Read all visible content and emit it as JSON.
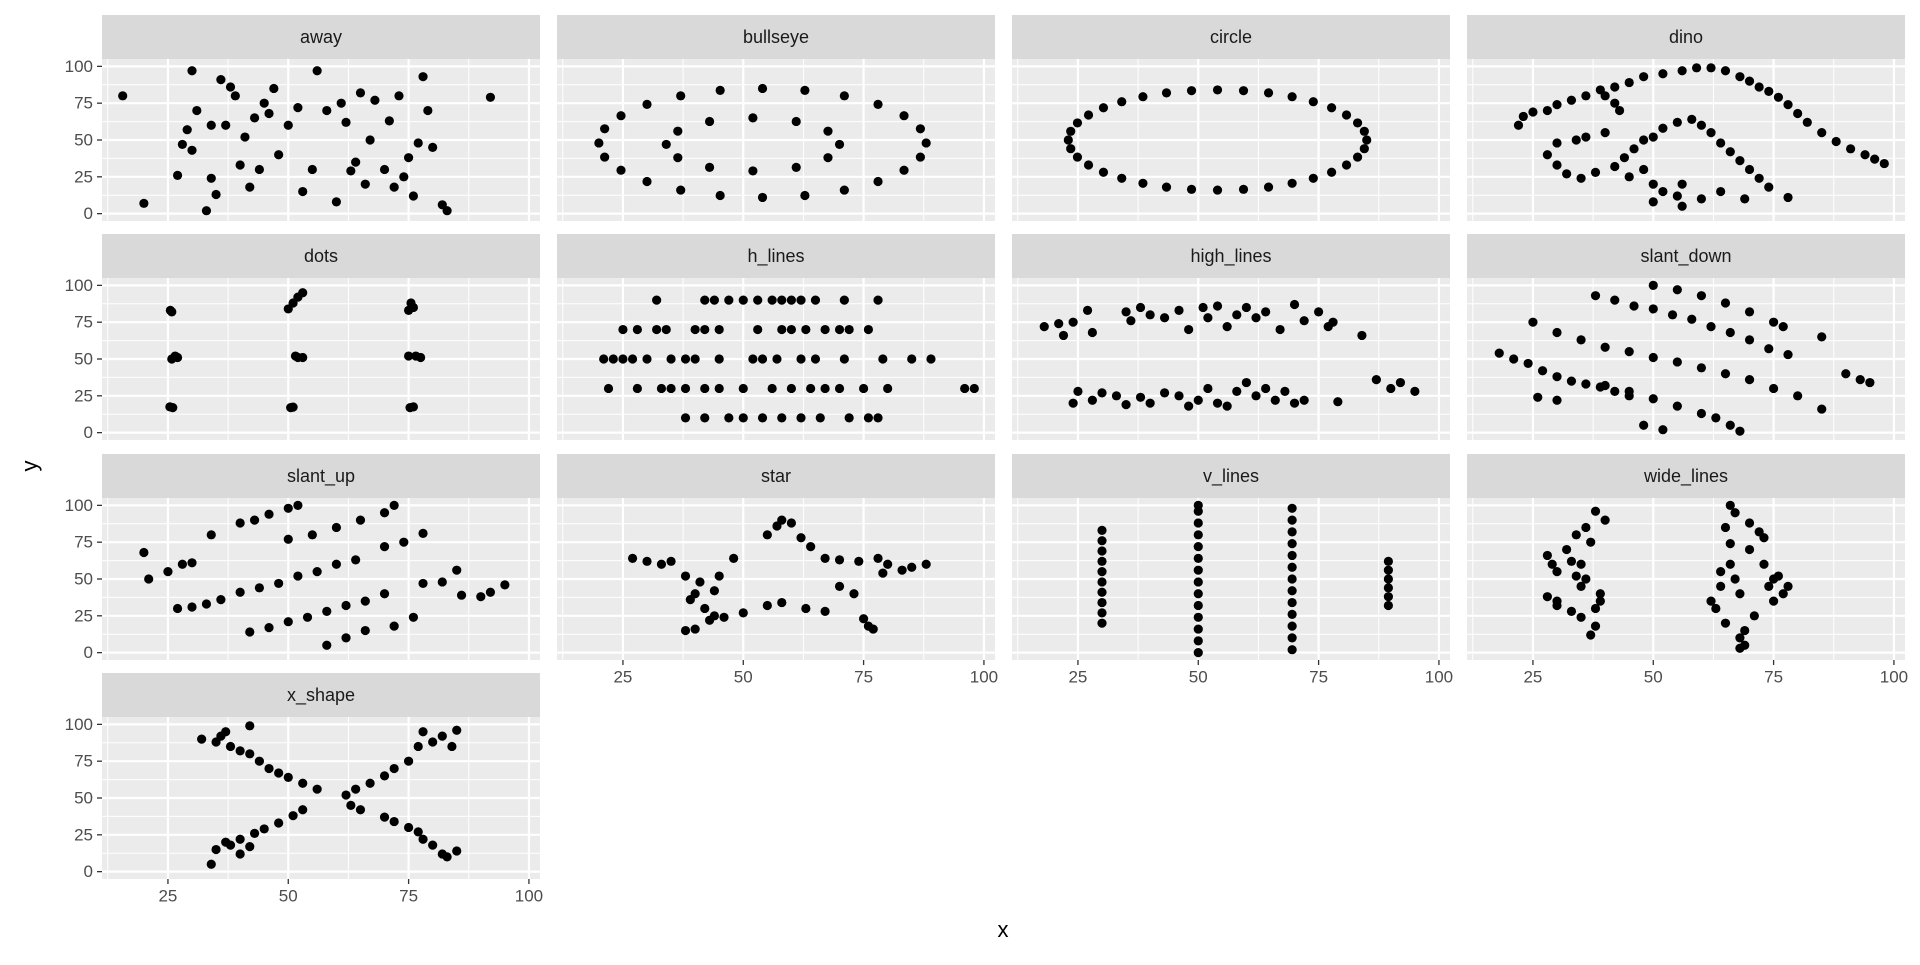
{
  "chart_data": {
    "type": "scatter",
    "xlabel": "x",
    "ylabel": "y",
    "xlim": [
      11.3,
      102.3
    ],
    "ylim": [
      -5,
      105
    ],
    "xticks": [
      25,
      50,
      75,
      100
    ],
    "yticks": [
      0,
      25,
      50,
      75,
      100
    ],
    "grid": true,
    "color": "#000000",
    "panel_color": "#ebebeb",
    "strip_color": "#d9d9d9",
    "panels": [
      {
        "name": "away",
        "x": [
          15.6,
          20,
          30,
          31,
          29,
          28,
          30,
          27,
          33,
          34,
          35,
          36,
          37,
          38,
          39,
          40,
          41,
          42,
          43,
          44,
          45,
          47,
          48,
          50,
          52,
          53,
          55,
          56,
          58,
          60,
          61,
          62,
          63,
          65,
          66,
          67,
          68,
          70,
          71,
          72,
          73,
          75,
          76,
          77,
          78,
          79,
          80,
          82,
          83,
          92,
          34,
          46,
          64,
          74
        ],
        "y": [
          80,
          7,
          97,
          70,
          57,
          47,
          43,
          26,
          2,
          24,
          13,
          91,
          60,
          86,
          80,
          33,
          52,
          18,
          65,
          30,
          75,
          85,
          40,
          60,
          72,
          15,
          30,
          97,
          70,
          8,
          75,
          62,
          29,
          82,
          20,
          50,
          77,
          30,
          63,
          18,
          80,
          38,
          12,
          48,
          93,
          70,
          45,
          6,
          2,
          79,
          60,
          68,
          35,
          25
        ]
      },
      {
        "name": "bullseye",
        "x": [
          88,
          83.4,
          71,
          54,
          37,
          24.6,
          20,
          24.6,
          37,
          54,
          71,
          83.4,
          86.8,
          78,
          62.8,
          45.2,
          30,
          21.2,
          21.2,
          30,
          45.2,
          62.8,
          78,
          86.8,
          70,
          67.6,
          61,
          52,
          43,
          36.4,
          34,
          36.4,
          43,
          52,
          61,
          67.6
        ],
        "y": [
          48,
          66.5,
          80,
          85,
          80,
          66.5,
          48,
          29.5,
          16,
          11,
          16,
          29.5,
          57.6,
          74.2,
          83.7,
          83.7,
          74.2,
          57.6,
          38.4,
          21.8,
          12.3,
          12.3,
          21.8,
          38.4,
          47,
          56,
          62.6,
          65,
          62.6,
          56,
          47,
          38,
          31.4,
          29,
          31.4,
          38
        ]
      },
      {
        "name": "circle",
        "x": [
          85,
          83.1,
          77.7,
          69.5,
          59.4,
          48.6,
          38.5,
          30.3,
          24.9,
          23,
          24.9,
          30.3,
          38.5,
          48.6,
          59.4,
          69.5,
          77.7,
          83.1,
          84.5,
          80.8,
          73.9,
          64.6,
          54,
          43.4,
          34.1,
          27.2,
          23.5,
          23.5,
          27.2,
          34.1,
          43.4,
          54,
          64.6,
          73.9,
          80.8,
          84.5
        ],
        "y": [
          50,
          61.6,
          71.9,
          79.4,
          83.5,
          83.5,
          79.4,
          71.9,
          61.6,
          50,
          38.4,
          28.1,
          20.6,
          16.5,
          16.5,
          20.6,
          28.1,
          38.4,
          55.9,
          67,
          76,
          82,
          84,
          82,
          76,
          67,
          55.9,
          44.1,
          33,
          24,
          18,
          16,
          18,
          24,
          33,
          44.1
        ]
      },
      {
        "name": "dino",
        "x": [
          22,
          23,
          25,
          28,
          30,
          33,
          36,
          39,
          42,
          45,
          48,
          52,
          56,
          59,
          62,
          65,
          68,
          70,
          72,
          74,
          76,
          78,
          80,
          82,
          85,
          88,
          91,
          94,
          96,
          98,
          28,
          30,
          32,
          35,
          38,
          42,
          44,
          46,
          48,
          50,
          52,
          55,
          58,
          60,
          62,
          64,
          66,
          68,
          70,
          72,
          74,
          78,
          60,
          55,
          52,
          50,
          56,
          64,
          69,
          40,
          42,
          43,
          40,
          36,
          34,
          30,
          56,
          50,
          45,
          48
        ],
        "y": [
          60,
          66,
          69,
          70,
          74,
          77,
          80,
          84,
          86,
          89,
          93,
          95,
          97,
          99,
          99,
          97,
          93,
          90,
          86,
          83,
          79,
          74,
          68,
          62,
          55,
          49,
          44,
          40,
          37,
          34,
          40,
          33,
          27,
          24,
          28,
          32,
          38,
          44,
          50,
          52,
          58,
          62,
          64,
          60,
          55,
          48,
          42,
          36,
          30,
          24,
          18,
          11,
          10,
          12,
          15,
          20,
          20,
          15,
          10,
          80,
          75,
          70,
          55,
          52,
          50,
          48,
          5,
          8,
          25,
          30
        ]
      },
      {
        "name": "dots",
        "x": [
          25.5,
          25.8,
          26,
          25.4,
          26.5,
          27,
          25.8,
          50,
          51,
          52,
          53,
          50.5,
          51,
          52,
          53,
          51.5,
          75,
          75.5,
          76,
          75.3,
          76,
          76.5,
          77.5,
          75
        ],
        "y": [
          83,
          82,
          17,
          17.5,
          52,
          51,
          50,
          84,
          88,
          92,
          95,
          17,
          17.3,
          51,
          51,
          52,
          83,
          88,
          85,
          17,
          17.5,
          52,
          51,
          52
        ]
      },
      {
        "name": "h_lines",
        "x": [
          32,
          42,
          44,
          47,
          50,
          53,
          56,
          58,
          60,
          62,
          65,
          71,
          78,
          25,
          28,
          32,
          34,
          40,
          42,
          45,
          53,
          58,
          60,
          63,
          67,
          70,
          72,
          76,
          21,
          23,
          25,
          27,
          30,
          35,
          38,
          40,
          45,
          52,
          54,
          57,
          62,
          65,
          71,
          79,
          85,
          89,
          22,
          28,
          33,
          35,
          38,
          42,
          45,
          50,
          56,
          60,
          64,
          67,
          70,
          75,
          80,
          96,
          98,
          38,
          42,
          47,
          50,
          54,
          58,
          62,
          66,
          72,
          76,
          78
        ],
        "y": [
          90,
          90,
          90,
          90,
          90,
          90,
          90,
          90,
          90,
          90,
          90,
          90,
          90,
          70,
          70,
          70,
          70,
          70,
          70,
          70,
          70,
          70,
          70,
          70,
          70,
          70,
          70,
          70,
          50,
          50,
          50,
          50,
          50,
          50,
          50,
          50,
          50,
          50,
          50,
          50,
          50,
          50,
          50,
          50,
          50,
          50,
          30,
          30,
          30,
          30,
          30,
          30,
          30,
          30,
          30,
          30,
          30,
          30,
          30,
          30,
          30,
          30,
          30,
          10,
          10,
          10,
          10,
          10,
          10,
          10,
          10,
          10,
          10,
          10
        ]
      },
      {
        "name": "high_lines",
        "x": [
          18,
          21,
          22,
          24,
          27,
          28,
          35,
          36,
          38,
          40,
          43,
          46,
          48,
          51,
          52,
          54,
          56,
          58,
          60,
          62,
          64,
          67,
          70,
          72,
          75,
          77,
          78,
          84,
          25,
          24,
          28,
          30,
          33,
          35,
          38,
          40,
          43,
          46,
          48,
          50,
          52,
          54,
          56,
          58,
          60,
          62,
          64,
          66,
          68,
          70,
          72,
          79,
          87,
          92,
          95,
          90
        ],
        "y": [
          72,
          74,
          66,
          75,
          83,
          68,
          82,
          76,
          85,
          80,
          78,
          83,
          70,
          85,
          78,
          86,
          72,
          80,
          85,
          78,
          82,
          70,
          87,
          76,
          82,
          72,
          75,
          66,
          28,
          20,
          22,
          27,
          25,
          19,
          24,
          20,
          27,
          25,
          18,
          22,
          30,
          20,
          18,
          28,
          34,
          25,
          30,
          22,
          28,
          20,
          22,
          21,
          36,
          34,
          28,
          30
        ]
      },
      {
        "name": "slant_down",
        "x": [
          18,
          21,
          24,
          27,
          30,
          33,
          36,
          39,
          42,
          45,
          25,
          30,
          35,
          40,
          45,
          50,
          55,
          60,
          65,
          70,
          75,
          80,
          85,
          38,
          42,
          46,
          50,
          54,
          58,
          62,
          66,
          70,
          74,
          78,
          50,
          55,
          60,
          65,
          70,
          75,
          77,
          85,
          90,
          93,
          95,
          40,
          45,
          50,
          55,
          60,
          63,
          66,
          68,
          52,
          48,
          26,
          30
        ],
        "y": [
          54,
          50,
          47,
          42,
          38,
          35,
          33,
          31,
          28,
          25,
          75,
          68,
          63,
          58,
          55,
          51,
          48,
          44,
          40,
          36,
          30,
          25,
          16,
          93,
          90,
          86,
          84,
          80,
          77,
          72,
          68,
          63,
          57,
          53,
          100,
          97,
          93,
          88,
          82,
          75,
          72,
          65,
          40,
          36,
          34,
          32,
          28,
          23,
          18,
          13,
          10,
          5,
          1,
          2,
          5,
          24,
          22
        ]
      },
      {
        "name": "slant_up",
        "x": [
          20,
          21,
          25,
          28,
          30,
          34,
          27,
          30,
          33,
          36,
          40,
          44,
          48,
          52,
          56,
          60,
          64,
          70,
          74,
          78,
          40,
          43,
          46,
          50,
          52,
          50,
          55,
          60,
          65,
          70,
          72,
          42,
          46,
          50,
          54,
          58,
          62,
          66,
          70,
          72,
          76,
          58,
          62,
          66,
          78,
          82,
          85,
          86,
          90,
          92,
          95
        ],
        "y": [
          68,
          50,
          55,
          60,
          61,
          80,
          30,
          31,
          33,
          36,
          41,
          44,
          47,
          52,
          55,
          60,
          63,
          72,
          75,
          81,
          88,
          90,
          94,
          98,
          100,
          77,
          80,
          85,
          90,
          95,
          100,
          14,
          17,
          21,
          24,
          28,
          32,
          35,
          40,
          18,
          24,
          5,
          10,
          15,
          47,
          48,
          56,
          39,
          38,
          41,
          46
        ]
      },
      {
        "name": "star",
        "x": [
          27,
          30,
          33,
          35,
          38,
          41,
          40,
          39,
          42,
          44,
          38,
          40,
          43,
          46,
          50,
          55,
          58,
          55,
          57,
          58,
          60,
          62,
          64,
          67,
          70,
          74,
          78,
          80,
          83,
          85,
          88,
          79,
          75,
          76,
          77,
          73,
          70,
          67,
          63,
          48,
          45,
          44
        ],
        "y": [
          64,
          62,
          60,
          62,
          52,
          48,
          40,
          36,
          30,
          25,
          15,
          16,
          22,
          24,
          27,
          32,
          34,
          80,
          86,
          90,
          88,
          78,
          72,
          64,
          63,
          62,
          64,
          60,
          56,
          58,
          60,
          54,
          23,
          18,
          16,
          40,
          45,
          28,
          30,
          64,
          52,
          42
        ]
      },
      {
        "name": "v_lines",
        "x": [
          30,
          30,
          30,
          30,
          30,
          30,
          30,
          30,
          30,
          30,
          50,
          50,
          50,
          50,
          50,
          50,
          50,
          50,
          50,
          50,
          50,
          50,
          50,
          50,
          69.5,
          69.5,
          69.5,
          69.5,
          69.5,
          69.5,
          69.5,
          69.5,
          69.5,
          69.5,
          69.5,
          69.5,
          69.5,
          89.5,
          89.5,
          89.5,
          89.5,
          89.5,
          89.5
        ],
        "y": [
          20,
          27,
          34,
          41,
          48,
          55,
          62,
          69,
          76,
          83,
          0,
          8,
          16,
          24,
          32,
          40,
          48,
          56,
          64,
          72,
          80,
          88,
          96,
          100,
          2,
          10,
          18,
          26,
          34,
          42,
          50,
          58,
          66,
          74,
          82,
          90,
          98,
          32,
          38,
          44,
          50,
          56,
          62
        ]
      },
      {
        "name": "wide_lines",
        "x": [
          28,
          29,
          30,
          28,
          30,
          32,
          33,
          34,
          35,
          33,
          35,
          36,
          37,
          38,
          37,
          38,
          40,
          39,
          36,
          35,
          38,
          39,
          30,
          34,
          62,
          63,
          64,
          65,
          65,
          66,
          67,
          66,
          67,
          68,
          68,
          69,
          70,
          70,
          72,
          73,
          74,
          75,
          76,
          77,
          78,
          68,
          66,
          64,
          71,
          69,
          73,
          75
        ],
        "y": [
          66,
          60,
          55,
          38,
          32,
          70,
          62,
          52,
          45,
          28,
          24,
          85,
          75,
          18,
          12,
          96,
          90,
          35,
          50,
          60,
          30,
          40,
          35,
          80,
          35,
          30,
          45,
          20,
          85,
          100,
          95,
          60,
          50,
          40,
          10,
          5,
          88,
          70,
          82,
          60,
          45,
          35,
          52,
          40,
          45,
          3,
          74,
          55,
          25,
          15,
          78,
          50
        ]
      },
      {
        "name": "x_shape",
        "x": [
          32,
          35,
          38,
          40,
          42,
          44,
          46,
          48,
          50,
          53,
          56,
          63,
          65,
          70,
          72,
          75,
          77,
          78,
          80,
          82,
          85,
          37,
          42,
          36,
          83,
          34,
          35,
          38,
          40,
          43,
          45,
          48,
          51,
          53,
          62,
          64,
          67,
          70,
          72,
          75,
          77,
          78,
          80,
          82,
          85,
          84,
          40,
          37,
          42
        ],
        "y": [
          90,
          88,
          85,
          82,
          80,
          75,
          70,
          67,
          64,
          60,
          56,
          45,
          42,
          37,
          34,
          30,
          27,
          22,
          18,
          12,
          14,
          95,
          99,
          92,
          10,
          5,
          15,
          18,
          22,
          26,
          29,
          33,
          38,
          42,
          52,
          56,
          60,
          65,
          70,
          75,
          85,
          95,
          88,
          92,
          96,
          85,
          12,
          20,
          17
        ]
      }
    ]
  }
}
